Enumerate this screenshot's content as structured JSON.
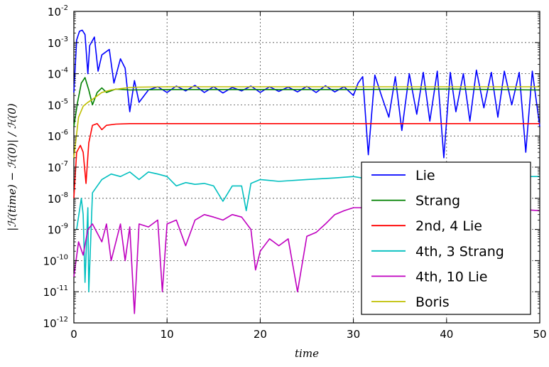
{
  "chart_data": {
    "type": "line",
    "title": "",
    "xlabel": "time",
    "ylabel": "|ℋ(time) − ℋ(0)| / ℋ(0)",
    "xlim": [
      0,
      50
    ],
    "ylim_log10": [
      -12,
      -2
    ],
    "yscale": "log",
    "grid": true,
    "legend_position": "lower-right",
    "x_ticks": [
      "0",
      "10",
      "20",
      "30",
      "40",
      "50"
    ],
    "y_tick_bases": [
      "10",
      "10",
      "10",
      "10",
      "10",
      "10",
      "10",
      "10",
      "10",
      "10",
      "10"
    ],
    "y_tick_exps": [
      "-2",
      "-3",
      "-4",
      "-5",
      "-6",
      "-7",
      "-8",
      "-9",
      "-10",
      "-11",
      "-12"
    ],
    "series": [
      {
        "name": "Lie",
        "color": "#0000ff",
        "points": [
          [
            0,
            2.5e-05
          ],
          [
            0.3,
            0.0012
          ],
          [
            0.6,
            0.0023
          ],
          [
            0.9,
            0.0025
          ],
          [
            1.2,
            0.0018
          ],
          [
            1.5,
            0.0001
          ],
          [
            1.7,
            0.0008
          ],
          [
            2.2,
            0.0015
          ],
          [
            2.6,
            0.00012
          ],
          [
            3,
            0.0004
          ],
          [
            3.8,
            0.0006
          ],
          [
            4.3,
            5e-05
          ],
          [
            5,
            0.0003
          ],
          [
            5.5,
            0.00015
          ],
          [
            6,
            6e-06
          ],
          [
            6.5,
            6e-05
          ],
          [
            7,
            1.2e-05
          ],
          [
            8,
            3e-05
          ],
          [
            9,
            3.8e-05
          ],
          [
            10,
            2.5e-05
          ],
          [
            11,
            4e-05
          ],
          [
            12,
            2.8e-05
          ],
          [
            13,
            4.2e-05
          ],
          [
            14,
            2.5e-05
          ],
          [
            15,
            3.8e-05
          ],
          [
            16,
            2.4e-05
          ],
          [
            17,
            3.6e-05
          ],
          [
            18,
            2.8e-05
          ],
          [
            19,
            4e-05
          ],
          [
            20,
            2.5e-05
          ],
          [
            21,
            3.8e-05
          ],
          [
            22,
            2.7e-05
          ],
          [
            23,
            3.7e-05
          ],
          [
            24,
            2.6e-05
          ],
          [
            25,
            3.9e-05
          ],
          [
            26,
            2.5e-05
          ],
          [
            27,
            4.1e-05
          ],
          [
            28,
            2.6e-05
          ],
          [
            29,
            3.8e-05
          ],
          [
            30,
            2e-05
          ],
          [
            30.5,
            5e-05
          ],
          [
            31,
            8e-05
          ],
          [
            31.6,
            2.5e-07
          ],
          [
            32.3,
            9e-05
          ],
          [
            33,
            2e-05
          ],
          [
            33.8,
            4e-06
          ],
          [
            34.5,
            8e-05
          ],
          [
            35.2,
            1.5e-06
          ],
          [
            36,
            0.0001
          ],
          [
            36.8,
            5e-06
          ],
          [
            37.5,
            0.00011
          ],
          [
            38.2,
            3e-06
          ],
          [
            39,
            0.00012
          ],
          [
            39.7,
            2e-07
          ],
          [
            40.4,
            0.00011
          ],
          [
            41,
            6e-06
          ],
          [
            41.8,
            0.0001
          ],
          [
            42.5,
            3e-06
          ],
          [
            43.2,
            0.00013
          ],
          [
            44,
            8e-06
          ],
          [
            44.8,
            0.00011
          ],
          [
            45.5,
            4e-06
          ],
          [
            46.2,
            0.00012
          ],
          [
            47,
            1e-05
          ],
          [
            47.8,
            0.00011
          ],
          [
            48.5,
            3e-07
          ],
          [
            49.2,
            0.00012
          ],
          [
            50,
            2e-06
          ]
        ]
      },
      {
        "name": "Strang",
        "color": "#008000",
        "points": [
          [
            0,
            2e-06
          ],
          [
            0.4,
            1.2e-05
          ],
          [
            0.8,
            5e-05
          ],
          [
            1.2,
            7.5e-05
          ],
          [
            1.6,
            3e-05
          ],
          [
            2.0,
            1e-05
          ],
          [
            2.5,
            2.5e-05
          ],
          [
            3,
            3.5e-05
          ],
          [
            3.5,
            2.5e-05
          ],
          [
            4.5,
            3.2e-05
          ],
          [
            6,
            3e-05
          ],
          [
            10,
            3.1e-05
          ],
          [
            20,
            3.1e-05
          ],
          [
            30,
            3.1e-05
          ],
          [
            40,
            3.2e-05
          ],
          [
            50,
            3e-05
          ]
        ]
      },
      {
        "name": "2nd, 4 Lie",
        "color": "#ff0000",
        "points": [
          [
            0,
            1e-08
          ],
          [
            0.3,
            3e-07
          ],
          [
            0.7,
            5e-07
          ],
          [
            1.0,
            3e-07
          ],
          [
            1.3,
            3e-08
          ],
          [
            1.6,
            6e-07
          ],
          [
            2.0,
            2.2e-06
          ],
          [
            2.5,
            2.5e-06
          ],
          [
            3.0,
            1.6e-06
          ],
          [
            3.5,
            2.2e-06
          ],
          [
            4.5,
            2.4e-06
          ],
          [
            6,
            2.5e-06
          ],
          [
            10,
            2.5e-06
          ],
          [
            20,
            2.5e-06
          ],
          [
            30,
            2.5e-06
          ],
          [
            40,
            2.5e-06
          ],
          [
            50,
            2.5e-06
          ]
        ]
      },
      {
        "name": "4th, 3 Strang",
        "color": "#00bfbf",
        "points": [
          [
            0.3,
            1e-09
          ],
          [
            0.8,
            1e-08
          ],
          [
            1.0,
            3e-09
          ],
          [
            1.2,
            2e-11
          ],
          [
            1.5,
            5e-09
          ],
          [
            1.6,
            1e-11
          ],
          [
            2,
            1.5e-08
          ],
          [
            3,
            4e-08
          ],
          [
            4,
            6e-08
          ],
          [
            5,
            5e-08
          ],
          [
            6,
            7e-08
          ],
          [
            7,
            4e-08
          ],
          [
            8,
            7e-08
          ],
          [
            9,
            6e-08
          ],
          [
            10,
            5e-08
          ],
          [
            11,
            2.5e-08
          ],
          [
            12,
            3.2e-08
          ],
          [
            13,
            2.8e-08
          ],
          [
            14,
            3e-08
          ],
          [
            15,
            2.5e-08
          ],
          [
            16,
            8e-09
          ],
          [
            17,
            2.5e-08
          ],
          [
            18,
            2.5e-08
          ],
          [
            18.5,
            4e-09
          ],
          [
            19,
            3e-08
          ],
          [
            20,
            4e-08
          ],
          [
            22,
            3.5e-08
          ],
          [
            25,
            4e-08
          ],
          [
            28,
            4.5e-08
          ],
          [
            30,
            5e-08
          ],
          [
            32,
            4e-08
          ],
          [
            35,
            5e-08
          ],
          [
            40,
            5e-08
          ],
          [
            45,
            5e-08
          ],
          [
            50,
            5e-08
          ]
        ]
      },
      {
        "name": "4th, 10 Lie",
        "color": "#bf00bf",
        "points": [
          [
            0,
            3e-11
          ],
          [
            0.5,
            4e-10
          ],
          [
            1,
            1.5e-10
          ],
          [
            1.5,
            1e-09
          ],
          [
            2,
            1.5e-09
          ],
          [
            3,
            4e-10
          ],
          [
            3.5,
            1.5e-09
          ],
          [
            4,
            1e-10
          ],
          [
            5,
            1.5e-09
          ],
          [
            5.5,
            1e-10
          ],
          [
            6,
            1.2e-09
          ],
          [
            6.5,
            2e-12
          ],
          [
            7,
            1.5e-09
          ],
          [
            8,
            1.2e-09
          ],
          [
            9,
            2e-09
          ],
          [
            9.5,
            1e-11
          ],
          [
            10,
            1.5e-09
          ],
          [
            11,
            2e-09
          ],
          [
            12,
            3e-10
          ],
          [
            13,
            2e-09
          ],
          [
            14,
            3e-09
          ],
          [
            15,
            2.5e-09
          ],
          [
            16,
            2e-09
          ],
          [
            17,
            3e-09
          ],
          [
            18,
            2.5e-09
          ],
          [
            19,
            1e-09
          ],
          [
            19.5,
            5e-11
          ],
          [
            20,
            2e-10
          ],
          [
            21,
            5e-10
          ],
          [
            22,
            3e-10
          ],
          [
            23,
            5e-10
          ],
          [
            24,
            1e-11
          ],
          [
            25,
            6e-10
          ],
          [
            26,
            8e-10
          ],
          [
            27,
            1.5e-09
          ],
          [
            28,
            3e-09
          ],
          [
            29,
            4e-09
          ],
          [
            30,
            5e-09
          ],
          [
            35,
            5e-09
          ],
          [
            40,
            5e-09
          ],
          [
            45,
            5e-09
          ],
          [
            50,
            4e-09
          ]
        ]
      },
      {
        "name": "Boris",
        "color": "#bfbf00",
        "points": [
          [
            0,
            2e-07
          ],
          [
            0.5,
            4e-06
          ],
          [
            1,
            9e-06
          ],
          [
            1.5,
            1.2e-05
          ],
          [
            2,
            1.5e-05
          ],
          [
            3,
            2.5e-05
          ],
          [
            4,
            3e-05
          ],
          [
            5,
            3.3e-05
          ],
          [
            6,
            3.6e-05
          ],
          [
            7,
            3.7e-05
          ],
          [
            10,
            3.8e-05
          ],
          [
            20,
            3.8e-05
          ],
          [
            30,
            3.8e-05
          ],
          [
            40,
            3.8e-05
          ],
          [
            50,
            3.8e-05
          ]
        ]
      }
    ]
  }
}
